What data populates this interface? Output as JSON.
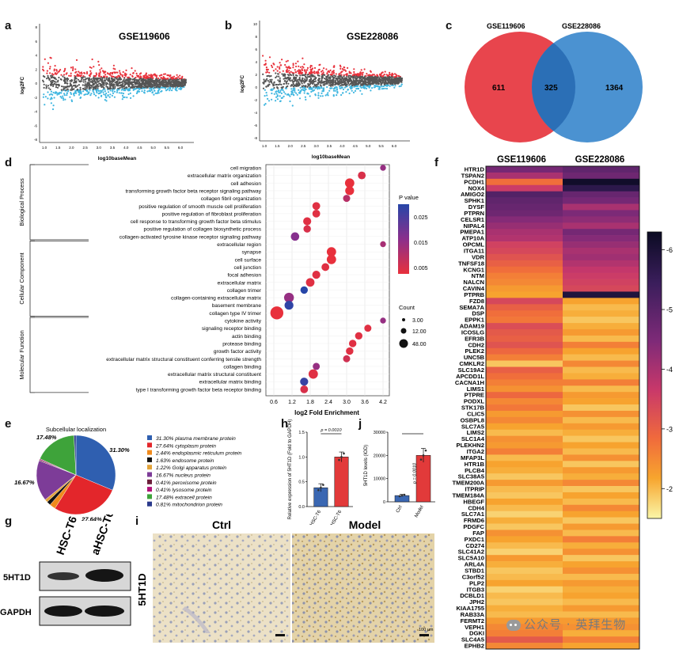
{
  "panels": {
    "a": "a",
    "b": "b",
    "c": "c",
    "d": "d",
    "e": "e",
    "f": "f",
    "g": "g",
    "h": "h",
    "i": "i",
    "j": "j"
  },
  "ma_plots": [
    {
      "title": "GSE119606",
      "ylabel": "log2FC",
      "xlabel": "log10baseMean",
      "xticks": [
        "1.0",
        "1.5",
        "2.0",
        "2.5",
        "3.0",
        "3.5",
        "4.0",
        "4.5",
        "5.0",
        "5.5",
        "6.0"
      ],
      "yticks": [
        "8",
        "6",
        "4",
        "2",
        "0",
        "-2",
        "-4",
        "-6",
        "-8"
      ]
    },
    {
      "title": "GSE228086",
      "ylabel": "log2FC",
      "xlabel": "log10baseMean",
      "xticks": [
        "1.0",
        "1.5",
        "2.0",
        "2.5",
        "3.0",
        "3.5",
        "4.0",
        "4.5",
        "5.0",
        "5.5",
        "6.0"
      ],
      "yticks": [
        "10",
        "8",
        "6",
        "4",
        "2",
        "0",
        "-2",
        "-4",
        "-6",
        "-8"
      ]
    }
  ],
  "colors": {
    "up": "#e8323c",
    "none": "#555555",
    "down": "#3fb6e0",
    "venn_left": "#e8454d",
    "venn_right": "#4b92d1",
    "venn_overlap": "#2b6fb6"
  },
  "venn": {
    "labels": [
      "GSE119606",
      "GSE228086"
    ],
    "left_only": "611",
    "overlap": "325",
    "right_only": "1364"
  },
  "go": {
    "xlabel": "log2 Fold Enrichment",
    "xticks": [
      "0.6",
      "1.2",
      "1.8",
      "2.4",
      "3.0",
      "3.6",
      "4.2"
    ],
    "categories": [
      "Biological Process",
      "Cellular Component",
      "Molecular Function"
    ],
    "legend_p_title": "P value",
    "legend_p_ticks": [
      "0.025",
      "0.015",
      "0.005"
    ],
    "legend_count_title": "Count",
    "legend_count_ticks": [
      "3.00",
      "12.00",
      "48.00"
    ],
    "terms": [
      {
        "cat": 0,
        "name": "cell migration",
        "x": 4.2,
        "p": 0.012,
        "c": 3
      },
      {
        "cat": 0,
        "name": "extracellular matrix organization",
        "x": 3.5,
        "p": 0.004,
        "c": 8
      },
      {
        "cat": 0,
        "name": "cell adhesion",
        "x": 3.1,
        "p": 0.002,
        "c": 14
      },
      {
        "cat": 0,
        "name": "transforming growth factor beta receptor signaling pathway",
        "x": 3.1,
        "p": 0.002,
        "c": 12
      },
      {
        "cat": 0,
        "name": "collagen fibril organization",
        "x": 3.0,
        "p": 0.008,
        "c": 6
      },
      {
        "cat": 0,
        "name": "positive regulation of smooth muscle cell proliferation",
        "x": 2.0,
        "p": 0.003,
        "c": 8
      },
      {
        "cat": 0,
        "name": "positive regulation of fibroblast proliferation",
        "x": 2.0,
        "p": 0.003,
        "c": 8
      },
      {
        "cat": 0,
        "name": "cell response to transforming growth factor beta stimulus",
        "x": 1.7,
        "p": 0.003,
        "c": 9
      },
      {
        "cat": 0,
        "name": "positive regulation of collagen biosynthetic process",
        "x": 1.7,
        "p": 0.004,
        "c": 7
      },
      {
        "cat": 0,
        "name": "collagen-activated tyrosine kinase receptor signaling pathway",
        "x": 1.3,
        "p": 0.014,
        "c": 10
      },
      {
        "cat": 1,
        "name": "extracellular region",
        "x": 4.2,
        "p": 0.01,
        "c": 3
      },
      {
        "cat": 1,
        "name": "synapse",
        "x": 2.5,
        "p": 0.002,
        "c": 14
      },
      {
        "cat": 1,
        "name": "cell surface",
        "x": 2.5,
        "p": 0.002,
        "c": 14
      },
      {
        "cat": 1,
        "name": "cell junction",
        "x": 2.3,
        "p": 0.003,
        "c": 8
      },
      {
        "cat": 1,
        "name": "focal adhesion",
        "x": 2.0,
        "p": 0.003,
        "c": 9
      },
      {
        "cat": 1,
        "name": "extracellular matrix",
        "x": 1.8,
        "p": 0.003,
        "c": 11
      },
      {
        "cat": 1,
        "name": "collagen trimer",
        "x": 1.6,
        "p": 0.025,
        "c": 7
      },
      {
        "cat": 1,
        "name": "collagen-containing extracellular matrix",
        "x": 1.1,
        "p": 0.012,
        "c": 16
      },
      {
        "cat": 1,
        "name": "basement membrane",
        "x": 1.1,
        "p": 0.024,
        "c": 12
      },
      {
        "cat": 1,
        "name": "collagen type IV trimer",
        "x": 0.7,
        "p": 0.002,
        "c": 34
      },
      {
        "cat": 2,
        "name": "cytokine activity",
        "x": 4.2,
        "p": 0.012,
        "c": 3
      },
      {
        "cat": 2,
        "name": "signaling receptor binding",
        "x": 3.7,
        "p": 0.003,
        "c": 6
      },
      {
        "cat": 2,
        "name": "actin binding",
        "x": 3.4,
        "p": 0.003,
        "c": 7
      },
      {
        "cat": 2,
        "name": "protease binding",
        "x": 3.2,
        "p": 0.003,
        "c": 7
      },
      {
        "cat": 2,
        "name": "growth factor activity",
        "x": 3.1,
        "p": 0.003,
        "c": 7
      },
      {
        "cat": 2,
        "name": "extracellular matrix structural constituent conferring tensile strength",
        "x": 3.0,
        "p": 0.005,
        "c": 6
      },
      {
        "cat": 2,
        "name": "collagen binding",
        "x": 2.0,
        "p": 0.012,
        "c": 6
      },
      {
        "cat": 2,
        "name": "extracellular matrix structural constituent",
        "x": 1.9,
        "p": 0.003,
        "c": 14
      },
      {
        "cat": 2,
        "name": "extracellular matrix binding",
        "x": 1.6,
        "p": 0.023,
        "c": 9
      },
      {
        "cat": 2,
        "name": "type I transforming growth factor beta receptor binding",
        "x": 1.6,
        "p": 0.004,
        "c": 8
      }
    ]
  },
  "pie": {
    "title": "Subcellular localization",
    "slices": [
      {
        "label": "31.30% plasma membrane protein",
        "value": 31.3,
        "color": "#2f5fb0",
        "shown": "31.30%"
      },
      {
        "label": "27.64% cytoplasm protein",
        "value": 27.64,
        "color": "#e3262b",
        "shown": "27.64%"
      },
      {
        "label": "2.44% endoplasmic reticulum protein",
        "value": 2.44,
        "color": "#f08a1c",
        "shown": ""
      },
      {
        "label": "1.63% endosome protein",
        "value": 1.63,
        "color": "#111111",
        "shown": ""
      },
      {
        "label": "1.22% Golgi apparatus protein",
        "value": 1.22,
        "color": "#e2a33a",
        "shown": ""
      },
      {
        "label": "16.67% nucleus protein",
        "value": 16.67,
        "color": "#7d3c98",
        "shown": "16.67%"
      },
      {
        "label": "0.41% peroxisome protein",
        "value": 0.41,
        "color": "#6b1e3a",
        "shown": ""
      },
      {
        "label": "0.41% lysosome protein",
        "value": 0.41,
        "color": "#b2127a",
        "shown": ""
      },
      {
        "label": "17.48% extracell protein",
        "value": 17.48,
        "color": "#3ea33a",
        "shown": "17.48%"
      },
      {
        "label": "0.81% mitochondrion protein",
        "value": 0.81,
        "color": "#2b3a8c",
        "shown": ""
      }
    ]
  },
  "bar_h": {
    "ylabel": "Relative expression of 5HT1D (Fold to GAPDH)",
    "categories": [
      "HSC-T6",
      "aHSC-T6"
    ],
    "values": [
      0.38,
      1.0
    ],
    "errors": [
      0.08,
      0.1
    ],
    "yticks": [
      "0.0",
      "0.5",
      "1.0",
      "1.5"
    ],
    "ymax": 1.5,
    "pval": "p = 0.0010"
  },
  "bar_j": {
    "ylabel": "5HT1D levels (IOD)",
    "categories": [
      "Ctrl",
      "Model"
    ],
    "values": [
      2700,
      20000
    ],
    "errors": [
      500,
      3000
    ],
    "yticks": [
      "0",
      "10000",
      "20000",
      "30000"
    ],
    "ymax": 30000,
    "pval": "p = 0.0010"
  },
  "western": {
    "lanes": [
      "HSC-T6",
      "aHSC-T6"
    ],
    "bands": [
      "5HT1D",
      "GAPDH"
    ]
  },
  "ihc": {
    "rowlabel": "5HT1D",
    "columns": [
      "Ctrl",
      "Model"
    ],
    "scalebar": "100 μm"
  },
  "heatmap": {
    "columns": [
      "GSE119606",
      "GSE228086"
    ],
    "scale_ticks": [
      "-6",
      "-5",
      "-4",
      "-3",
      "-2"
    ],
    "vmin": -6.3,
    "vmax": -1.5,
    "genes": [
      "HTR1D",
      "TSPAN2",
      "PCDH1",
      "NOX4",
      "AMIGO2",
      "SPHK1",
      "DYSF",
      "PTPRN",
      "CELSR1",
      "NIPAL4",
      "PMEPA1",
      "ATP10A",
      "OPCML",
      "ITGA11",
      "VDR",
      "TNFSF18",
      "KCNG1",
      "NTM",
      "NALCN",
      "CAVIN4",
      "PTPRB",
      "FZD8",
      "SEMA7A",
      "DSP",
      "EPPK1",
      "ADAM19",
      "ICOSLG",
      "EFR3B",
      "CDH2",
      "PLEK2",
      "UNC5B",
      "CMKLR2",
      "SLC19A2",
      "APCDD1L",
      "CACNA1H",
      "LIMS1",
      "PTPRE",
      "PODXL",
      "STK17B",
      "CLIC5",
      "OSBPL8",
      "SLC7A5",
      "LIMS2",
      "SLC1A4",
      "PLEKHN2",
      "ITGA2",
      "MFAP3L",
      "HTR1B",
      "PLCB4",
      "SLC38A5",
      "TMEM200A",
      "ITPRIP",
      "TMEM184A",
      "HBEGF",
      "CDH4",
      "SLC7A1",
      "FRMD6",
      "PDGFC",
      "FAP",
      "PXDC1",
      "CD274",
      "SLC41A2",
      "SLC5A10",
      "ARL4A",
      "STBD1",
      "C3orf52",
      "PLP2",
      "ITGB3",
      "DCBLD1",
      "JPH2",
      "KIAA1755",
      "RAB33A",
      "FERMT2",
      "VEPH1",
      "DGKI",
      "SLC4A5",
      "EPHB2"
    ],
    "values": [
      [
        -4.6,
        -4.9
      ],
      [
        -4.0,
        -4.7
      ],
      [
        -2.8,
        -6.2
      ],
      [
        -3.6,
        -5.7
      ],
      [
        -5.1,
        -4.8
      ],
      [
        -4.9,
        -4.6
      ],
      [
        -4.8,
        -4.0
      ],
      [
        -4.7,
        -4.5
      ],
      [
        -4.4,
        -4.3
      ],
      [
        -4.2,
        -4.0
      ],
      [
        -4.0,
        -4.6
      ],
      [
        -3.9,
        -4.4
      ],
      [
        -3.5,
        -4.2
      ],
      [
        -3.4,
        -4.0
      ],
      [
        -3.2,
        -4.1
      ],
      [
        -3.0,
        -3.9
      ],
      [
        -2.8,
        -3.7
      ],
      [
        -2.6,
        -3.6
      ],
      [
        -2.5,
        -3.5
      ],
      [
        -2.3,
        -3.4
      ],
      [
        -2.2,
        -5.9
      ],
      [
        -3.4,
        -2.2
      ],
      [
        -3.0,
        -2.0
      ],
      [
        -2.8,
        -2.1
      ],
      [
        -2.7,
        -1.9
      ],
      [
        -3.3,
        -2.1
      ],
      [
        -3.1,
        -2.3
      ],
      [
        -3.0,
        -2.0
      ],
      [
        -3.2,
        -2.6
      ],
      [
        -2.9,
        -2.2
      ],
      [
        -2.6,
        -2.0
      ],
      [
        -1.9,
        -2.5
      ],
      [
        -3.0,
        -2.0
      ],
      [
        -2.8,
        -2.1
      ],
      [
        -2.6,
        -2.6
      ],
      [
        -2.4,
        -2.0
      ],
      [
        -2.9,
        -2.3
      ],
      [
        -2.5,
        -2.2
      ],
      [
        -2.7,
        -1.9
      ],
      [
        -2.3,
        -2.4
      ],
      [
        -2.5,
        -2.0
      ],
      [
        -2.2,
        -2.3
      ],
      [
        -2.0,
        -2.1
      ],
      [
        -2.4,
        -1.9
      ],
      [
        -2.3,
        -2.2
      ],
      [
        -2.6,
        -2.0
      ],
      [
        -2.0,
        -2.4
      ],
      [
        -2.2,
        -1.9
      ],
      [
        -2.1,
        -2.3
      ],
      [
        -1.9,
        -2.1
      ],
      [
        -2.3,
        -2.5
      ],
      [
        -2.0,
        -1.9
      ],
      [
        -1.9,
        -2.2
      ],
      [
        -2.2,
        -2.0
      ],
      [
        -2.0,
        -2.5
      ],
      [
        -1.8,
        -2.2
      ],
      [
        -2.1,
        -1.9
      ],
      [
        -1.9,
        -2.3
      ],
      [
        -2.4,
        -2.0
      ],
      [
        -2.2,
        -2.6
      ],
      [
        -2.0,
        -2.1
      ],
      [
        -1.8,
        -2.4
      ],
      [
        -2.3,
        -1.9
      ],
      [
        -2.1,
        -2.2
      ],
      [
        -1.9,
        -2.4
      ],
      [
        -2.0,
        -2.0
      ],
      [
        -2.2,
        -2.3
      ],
      [
        -1.8,
        -2.1
      ],
      [
        -2.0,
        -2.2
      ],
      [
        -1.9,
        -2.0
      ],
      [
        -2.1,
        -2.3
      ],
      [
        -2.0,
        -2.0
      ],
      [
        -2.3,
        -2.3
      ],
      [
        -2.5,
        -2.4
      ],
      [
        -2.6,
        -2.1
      ],
      [
        -3.1,
        -2.6
      ],
      [
        -2.5,
        -2.2
      ]
    ]
  },
  "watermark": "公众号 · 英拜生物"
}
